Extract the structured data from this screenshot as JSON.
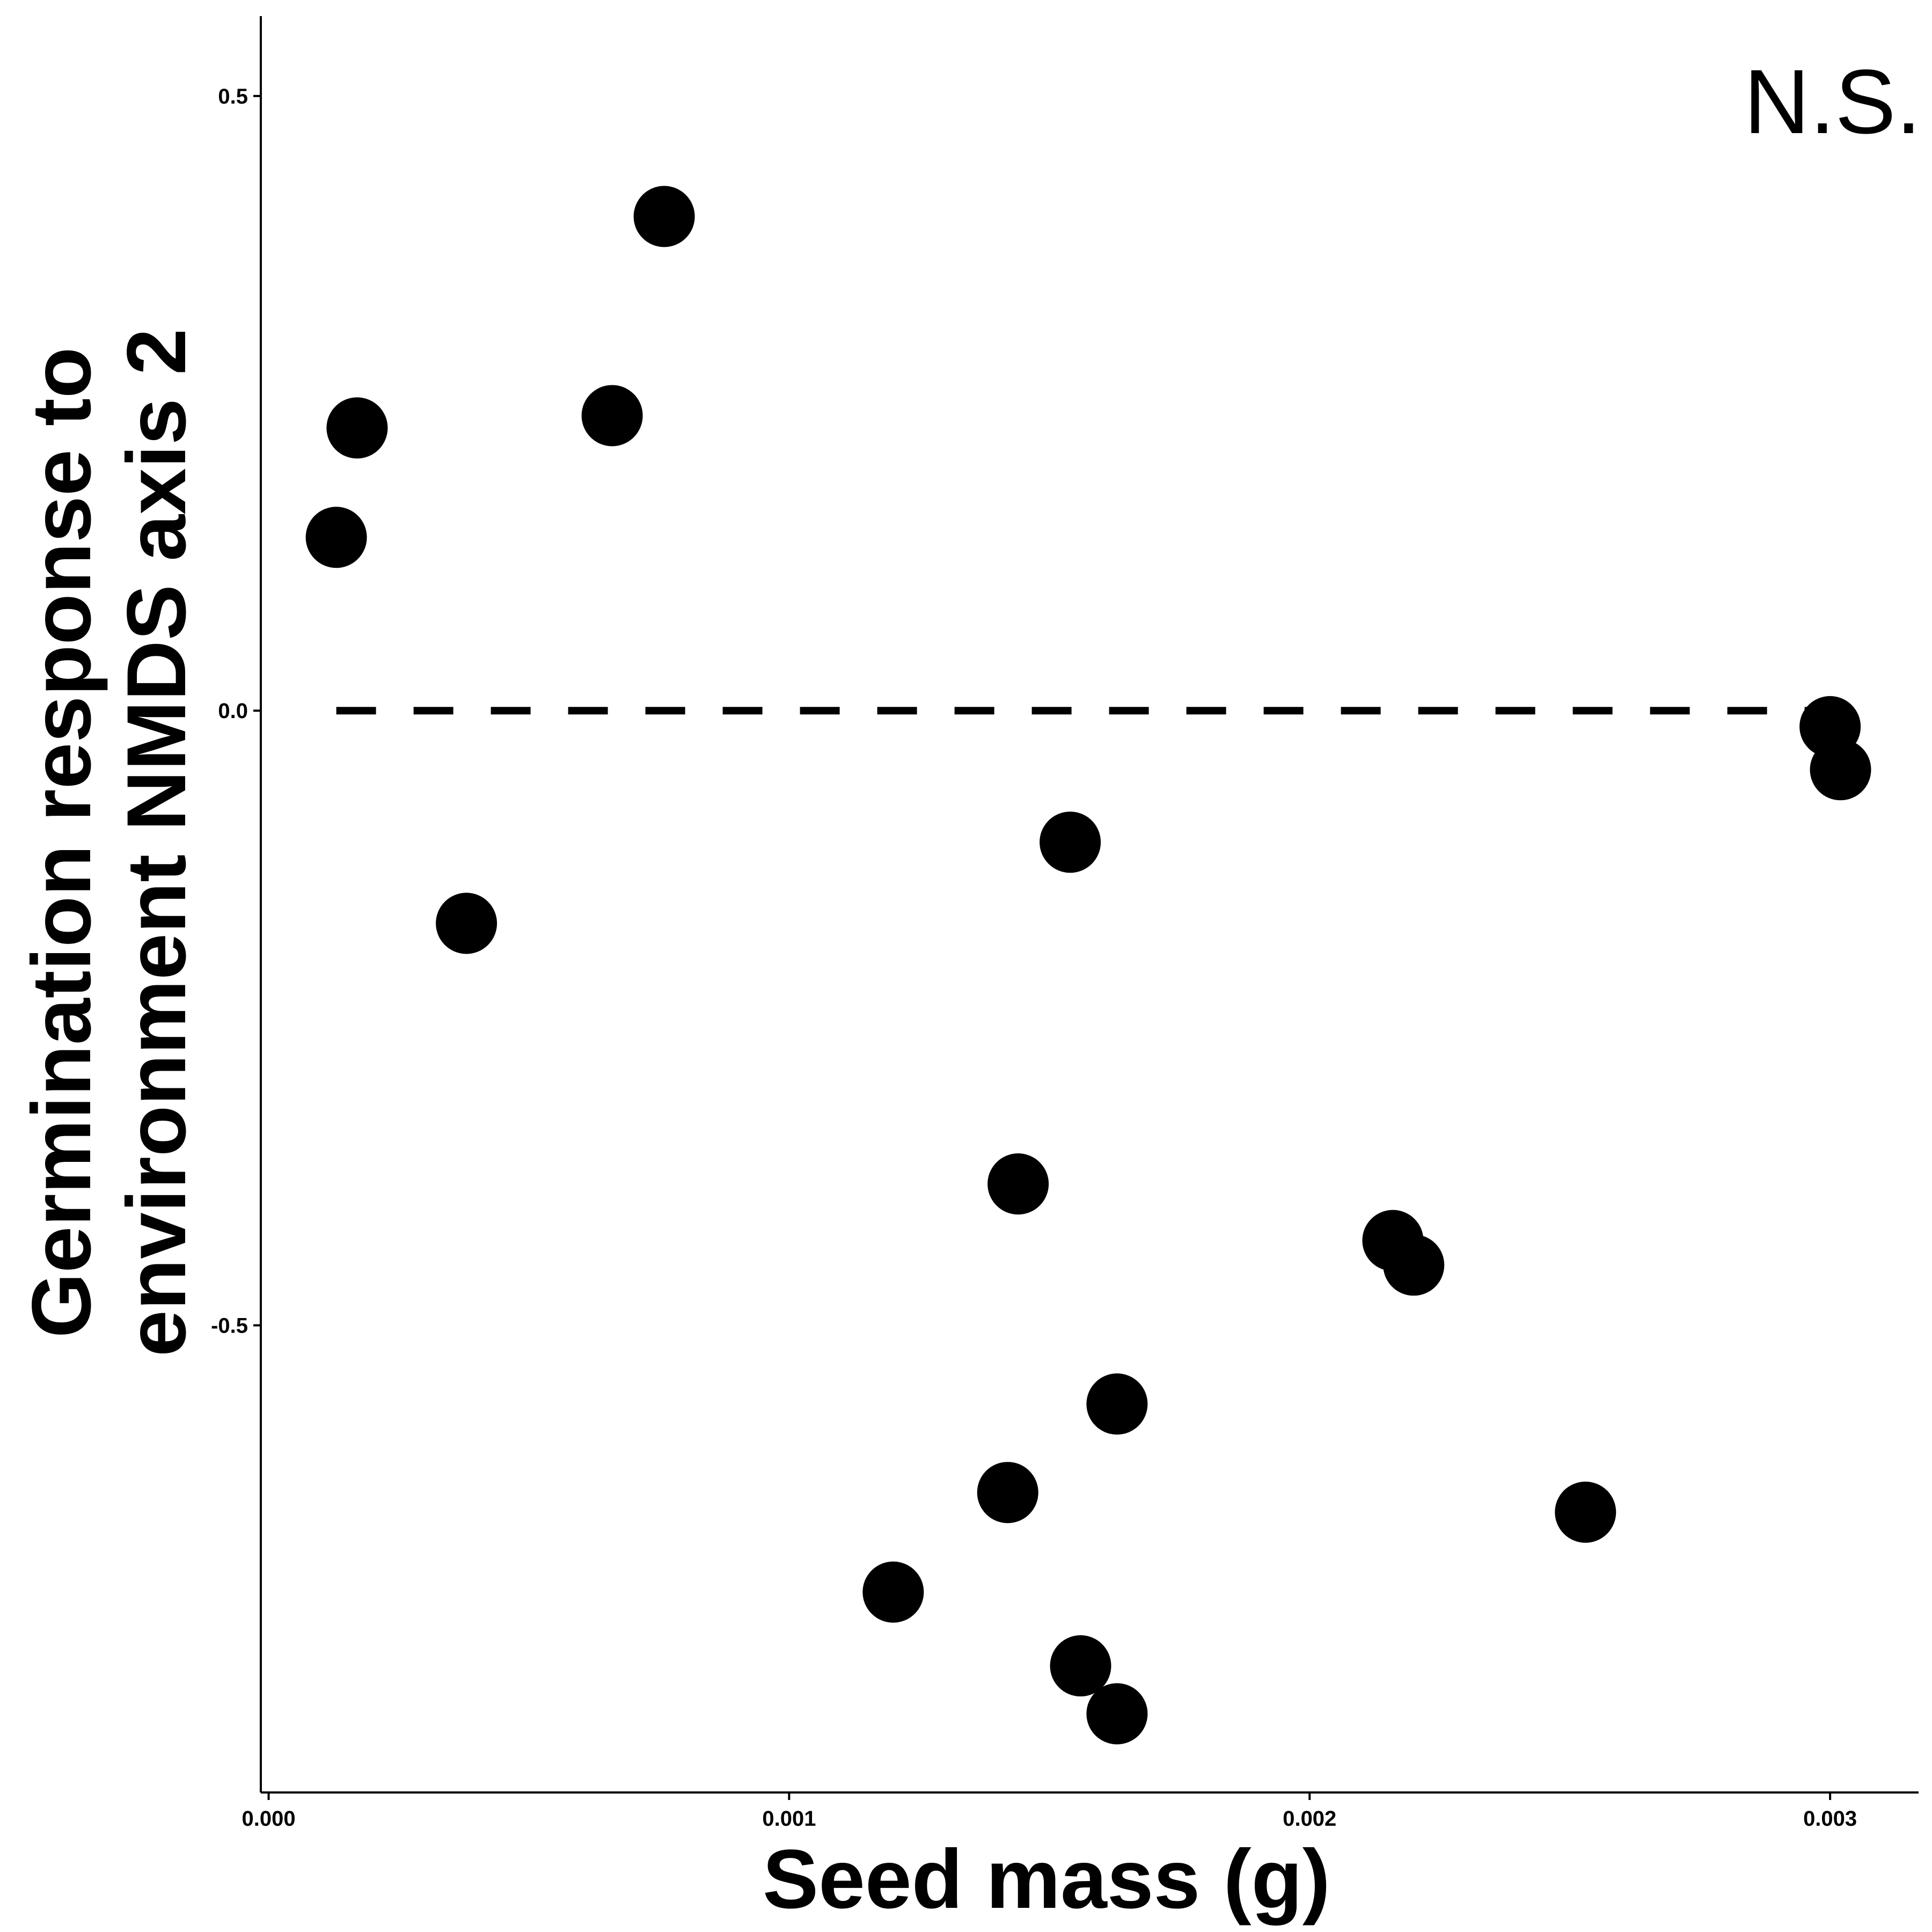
{
  "chart_data": {
    "type": "scatter",
    "title": "",
    "xlabel": "Seed mass (g)",
    "ylabel_lines": [
      "Germination response to",
      "environment NMDS axis 2"
    ],
    "annotation": "N.S.",
    "xlim": [
      -1.5e-05,
      0.00317
    ],
    "ylim": [
      -0.88,
      0.565
    ],
    "x_ticks": [
      {
        "value": 0.0,
        "label": "0.000"
      },
      {
        "value": 0.001,
        "label": "0.001"
      },
      {
        "value": 0.002,
        "label": "0.002"
      },
      {
        "value": 0.003,
        "label": "0.003"
      }
    ],
    "y_ticks": [
      {
        "value": 0.5,
        "label": "0.5"
      },
      {
        "value": 0.0,
        "label": "0.0"
      },
      {
        "value": -0.5,
        "label": "-0.5"
      }
    ],
    "reference_line": {
      "y": 0.0,
      "x_from": 0.00013,
      "x_to": 0.003,
      "style": "dashed"
    },
    "grid": false,
    "point_color": "#000000",
    "points": [
      {
        "x": 0.00013,
        "y": 0.141
      },
      {
        "x": 0.00017,
        "y": 0.23
      },
      {
        "x": 0.00038,
        "y": -0.173
      },
      {
        "x": 0.00066,
        "y": 0.24
      },
      {
        "x": 0.00076,
        "y": 0.402
      },
      {
        "x": 0.0012,
        "y": -0.717
      },
      {
        "x": 0.00142,
        "y": -0.636
      },
      {
        "x": 0.00144,
        "y": -0.385
      },
      {
        "x": 0.00154,
        "y": -0.107
      },
      {
        "x": 0.00156,
        "y": -0.777
      },
      {
        "x": 0.00163,
        "y": -0.564
      },
      {
        "x": 0.00163,
        "y": -0.816
      },
      {
        "x": 0.00216,
        "y": -0.431
      },
      {
        "x": 0.0022,
        "y": -0.451
      },
      {
        "x": 0.00253,
        "y": -0.652
      },
      {
        "x": 0.003,
        "y": -0.013
      },
      {
        "x": 0.00302,
        "y": -0.048
      }
    ]
  }
}
